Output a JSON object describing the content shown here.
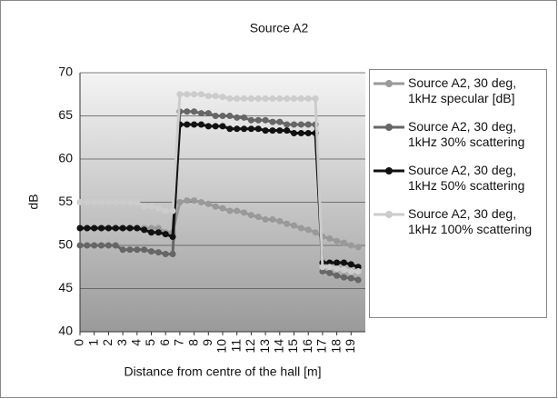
{
  "chart_data": {
    "type": "line",
    "title": "Source A2",
    "x_label": "Distance from centre of the hall [m]",
    "y_label": "dB",
    "x": [
      0,
      0.5,
      1,
      1.5,
      2,
      2.5,
      3,
      3.5,
      4,
      4.5,
      5,
      5.5,
      6,
      6.5,
      7,
      7.5,
      8,
      8.5,
      9,
      9.5,
      10,
      10.5,
      11,
      11.5,
      12,
      12.5,
      13,
      13.5,
      14,
      14.5,
      15,
      15.5,
      16,
      16.5,
      17,
      17.5,
      18,
      18.5,
      19,
      19.5
    ],
    "series": [
      {
        "name": "Source A2, 30 deg, 1kHz specular [dB]",
        "color": "#999999",
        "values": [
          52,
          52,
          52,
          52,
          52,
          52,
          52,
          52,
          52,
          52,
          52,
          52,
          51.5,
          51.5,
          55,
          55.2,
          55.2,
          55,
          54.8,
          54.5,
          54.3,
          54,
          54,
          53.8,
          53.5,
          53.3,
          53,
          53,
          52.8,
          52.5,
          52.3,
          52,
          51.8,
          51.5,
          51,
          50.8,
          50.5,
          50.3,
          50,
          49.8
        ]
      },
      {
        "name": "Source A2, 30 deg, 1kHz 30% scattering",
        "color": "#666666",
        "values": [
          50,
          50,
          50,
          50,
          50,
          50,
          49.5,
          49.5,
          49.5,
          49.5,
          49.3,
          49.2,
          49,
          49,
          65.5,
          65.5,
          65.5,
          65.3,
          65.3,
          65,
          65,
          65,
          64.8,
          64.8,
          64.5,
          64.5,
          64.5,
          64.3,
          64.3,
          64,
          64,
          64,
          64,
          64,
          47,
          46.8,
          46.5,
          46.3,
          46.2,
          46
        ]
      },
      {
        "name": "Source A2, 30 deg, 1kHz 50% scattering",
        "color": "#111111",
        "values": [
          52,
          52,
          52,
          52,
          52,
          52,
          52,
          52,
          52,
          51.8,
          51.5,
          51.5,
          51.3,
          51,
          64,
          64,
          64,
          64,
          63.8,
          63.8,
          63.8,
          63.5,
          63.5,
          63.5,
          63.5,
          63.5,
          63.3,
          63.3,
          63.3,
          63.3,
          63,
          63,
          63,
          63,
          48,
          48,
          48,
          48,
          47.8,
          47.5
        ]
      },
      {
        "name": "Source A2, 30 deg, 1kHz 100% scattering",
        "color": "#cccccc",
        "values": [
          55,
          55,
          55,
          55,
          55,
          55,
          55,
          55,
          55,
          54.5,
          54.5,
          54.3,
          54,
          54,
          67.5,
          67.5,
          67.5,
          67.5,
          67.3,
          67.3,
          67.2,
          67,
          67,
          67,
          67,
          67,
          67,
          67,
          67,
          67,
          67,
          67,
          67,
          67,
          47.5,
          47.5,
          47.3,
          47.2,
          47,
          47
        ]
      }
    ],
    "xlim": [
      0,
      20
    ],
    "xticks": [
      0,
      1,
      2,
      3,
      4,
      5,
      6,
      7,
      8,
      9,
      10,
      11,
      12,
      13,
      14,
      15,
      16,
      17,
      18,
      19
    ],
    "ylim": [
      40,
      70
    ],
    "yticks": [
      40,
      45,
      50,
      55,
      60,
      65,
      70
    ],
    "grid": true,
    "legend": "right"
  }
}
